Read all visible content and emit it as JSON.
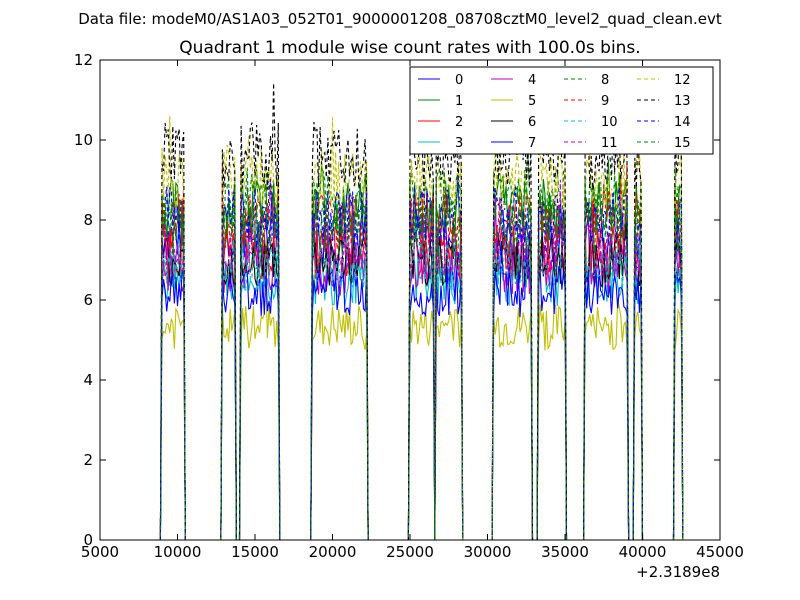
{
  "figure": {
    "suptitle": "Data file: modeM0/AS1A03_052T01_9000001208_08708cztM0_level2_quad_clean.evt"
  },
  "chart_data": {
    "type": "line",
    "title": "Quadrant 1 module wise count rates with 100.0s bins.",
    "xlabel": "",
    "ylabel": "",
    "x_offset_label": "+2.3189e8",
    "xlim": [
      5000,
      45000
    ],
    "ylim": [
      0,
      12
    ],
    "xticks": [
      5000,
      10000,
      15000,
      20000,
      25000,
      30000,
      35000,
      40000,
      45000
    ],
    "xtick_labels": [
      "5000",
      "10000",
      "15000",
      "20000",
      "25000",
      "30000",
      "35000",
      "40000",
      "45000"
    ],
    "yticks": [
      0,
      2,
      4,
      6,
      8,
      10,
      12
    ],
    "ytick_labels": [
      "0",
      "2",
      "4",
      "6",
      "8",
      "10",
      "12"
    ],
    "legend_position": "top-right",
    "legend_columns": 4,
    "bin_width": 100,
    "segments": [
      [
        9000,
        10400
      ],
      [
        12900,
        13700
      ],
      [
        14100,
        16500
      ],
      [
        18700,
        22200
      ],
      [
        25000,
        26500
      ],
      [
        26700,
        28300
      ],
      [
        30400,
        32800
      ],
      [
        33300,
        35000
      ],
      [
        36300,
        39000
      ],
      [
        39500,
        39900
      ],
      [
        42100,
        42500
      ]
    ],
    "series": [
      {
        "name": "0",
        "color": "#0000ff",
        "dash": false,
        "level": 7.6
      },
      {
        "name": "1",
        "color": "#008000",
        "dash": false,
        "level": 8.3
      },
      {
        "name": "2",
        "color": "#ff0000",
        "dash": false,
        "level": 7.2
      },
      {
        "name": "3",
        "color": "#00bfbf",
        "dash": false,
        "level": 6.5
      },
      {
        "name": "4",
        "color": "#bf00bf",
        "dash": false,
        "level": 6.8
      },
      {
        "name": "5",
        "color": "#bfbf00",
        "dash": false,
        "level": 5.3
      },
      {
        "name": "6",
        "color": "#000000",
        "dash": false,
        "level": 7.0
      },
      {
        "name": "7",
        "color": "#0000ff",
        "dash": false,
        "level": 6.2
      },
      {
        "name": "8",
        "color": "#008000",
        "dash": true,
        "level": 8.5
      },
      {
        "name": "9",
        "color": "#ff0000",
        "dash": true,
        "level": 8.0
      },
      {
        "name": "10",
        "color": "#00bfbf",
        "dash": true,
        "level": 6.9
      },
      {
        "name": "11",
        "color": "#bf00bf",
        "dash": true,
        "level": 7.3
      },
      {
        "name": "12",
        "color": "#bfbf00",
        "dash": true,
        "level": 9.0
      },
      {
        "name": "13",
        "color": "#000000",
        "dash": true,
        "level": 9.6
      },
      {
        "name": "14",
        "color": "#0000ff",
        "dash": true,
        "level": 8.1
      },
      {
        "name": "15",
        "color": "#008000",
        "dash": true,
        "level": 7.8
      }
    ]
  }
}
